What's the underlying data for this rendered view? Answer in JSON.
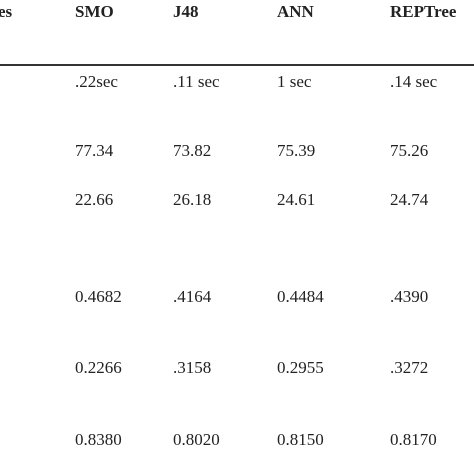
{
  "table": {
    "header": [
      "es",
      "SMO",
      "J48",
      "ANN",
      "REPTree"
    ],
    "rows": [
      [
        ".22sec",
        ".11 sec",
        "1 sec",
        ".14 sec"
      ],
      [
        "77.34",
        "73.82",
        "75.39",
        "75.26"
      ],
      [
        "22.66",
        "26.18",
        "24.61",
        "24.74"
      ],
      [
        "0.4682",
        ".4164",
        "0.4484",
        ".4390"
      ],
      [
        "0.2266",
        ".3158",
        "0.2955",
        ".3272"
      ],
      [
        "0.8380",
        "0.8020",
        "0.8150",
        "0.8170"
      ]
    ]
  }
}
